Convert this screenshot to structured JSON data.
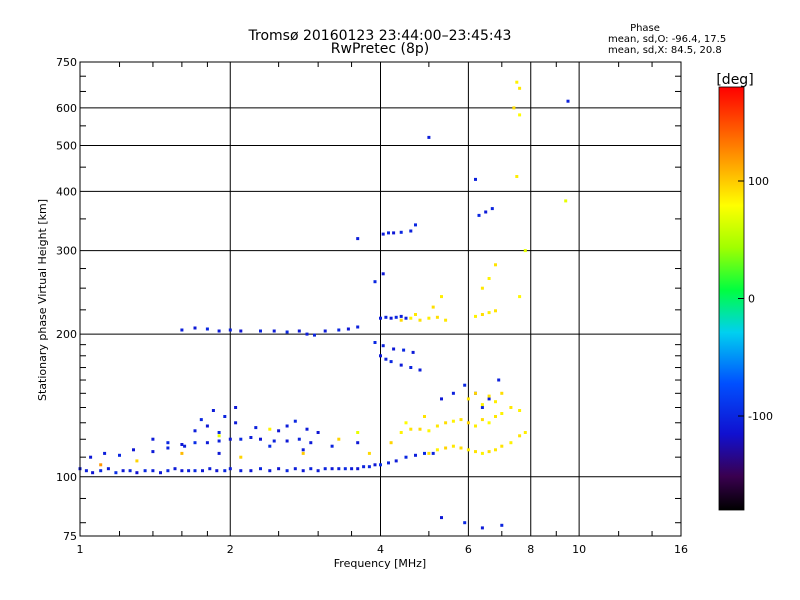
{
  "chart_data": {
    "type": "scatter",
    "title": "Tromsø 20160123 23:44:00–23:45:43",
    "subtitle": "RwPretec (8p)",
    "phase_title": "Phase",
    "phase_stats": [
      "mean, sd,O: -96.4, 17.5",
      "mean, sd,X:  84.5, 20.8"
    ],
    "xlabel": "Frequency [MHz]",
    "ylabel": "Stationary phase Virtual Height [km]",
    "x_scale": "log2",
    "y_scale": "log",
    "xlim": [
      1,
      16
    ],
    "ylim": [
      75,
      750
    ],
    "x_ticks": [
      1,
      2,
      4,
      6,
      8,
      10,
      16
    ],
    "y_ticks": [
      75,
      100,
      200,
      300,
      400,
      500,
      600,
      750
    ],
    "x_grid": [
      2,
      4,
      6,
      8,
      10
    ],
    "y_grid": [
      100,
      200,
      300,
      400,
      500,
      600
    ],
    "colorbar": {
      "label": "[deg]",
      "ticks": [
        -100,
        0,
        100
      ],
      "range": [
        -180,
        180
      ]
    },
    "series": [
      {
        "mode": "O",
        "points": [
          [
            1.0,
            104,
            -110
          ],
          [
            1.03,
            103,
            -105
          ],
          [
            1.06,
            102,
            -112
          ],
          [
            1.1,
            103,
            -100
          ],
          [
            1.14,
            104,
            -108
          ],
          [
            1.18,
            102,
            -95
          ],
          [
            1.22,
            103,
            -110
          ],
          [
            1.26,
            103,
            -102
          ],
          [
            1.3,
            102,
            -115
          ],
          [
            1.35,
            103,
            -98
          ],
          [
            1.4,
            103,
            -105
          ],
          [
            1.45,
            102,
            -110
          ],
          [
            1.5,
            103,
            -100
          ],
          [
            1.55,
            104,
            -108
          ],
          [
            1.6,
            103,
            -112
          ],
          [
            1.65,
            103,
            -104
          ],
          [
            1.7,
            103,
            -98
          ],
          [
            1.76,
            103,
            -110
          ],
          [
            1.82,
            104,
            -106
          ],
          [
            1.88,
            103,
            -112
          ],
          [
            1.95,
            103,
            -100
          ],
          [
            2.0,
            104,
            -108
          ],
          [
            2.1,
            103,
            -104
          ],
          [
            2.2,
            103,
            -110
          ],
          [
            2.3,
            104,
            -102
          ],
          [
            2.4,
            103,
            -108
          ],
          [
            2.5,
            104,
            -112
          ],
          [
            2.6,
            103,
            -100
          ],
          [
            2.7,
            104,
            -106
          ],
          [
            2.8,
            103,
            -110
          ],
          [
            2.9,
            104,
            -104
          ],
          [
            3.0,
            103,
            -108
          ],
          [
            3.1,
            104,
            -102
          ],
          [
            3.2,
            104,
            -110
          ],
          [
            3.3,
            104,
            -106
          ],
          [
            3.4,
            104,
            -98
          ],
          [
            3.5,
            104,
            -108
          ],
          [
            3.6,
            104,
            -112
          ],
          [
            3.7,
            105,
            -104
          ],
          [
            3.8,
            105,
            -100
          ],
          [
            3.9,
            106,
            -110
          ],
          [
            4.0,
            106,
            -95
          ],
          [
            4.15,
            107,
            -102
          ],
          [
            4.3,
            108,
            -108
          ],
          [
            4.5,
            110,
            -100
          ],
          [
            4.7,
            111,
            -105
          ],
          [
            4.9,
            112,
            -98
          ],
          [
            5.1,
            112,
            -102
          ],
          [
            1.05,
            110,
            -110
          ],
          [
            1.12,
            112,
            -105
          ],
          [
            1.2,
            111,
            -100
          ],
          [
            1.28,
            114,
            -112
          ],
          [
            1.4,
            113,
            -108
          ],
          [
            1.5,
            115,
            -102
          ],
          [
            1.6,
            117,
            -110
          ],
          [
            1.7,
            118,
            -95
          ],
          [
            1.8,
            118,
            -108
          ],
          [
            1.9,
            119,
            -104
          ],
          [
            2.0,
            120,
            -110
          ],
          [
            2.1,
            120,
            -100
          ],
          [
            2.2,
            121,
            -106
          ],
          [
            2.3,
            120,
            -112
          ],
          [
            2.45,
            119,
            -104
          ],
          [
            2.6,
            119,
            -110
          ],
          [
            2.75,
            120,
            -102
          ],
          [
            2.9,
            118,
            -108
          ],
          [
            1.7,
            125,
            -105
          ],
          [
            1.8,
            128,
            -110
          ],
          [
            1.9,
            124,
            -100
          ],
          [
            2.05,
            130,
            -108
          ],
          [
            2.25,
            127,
            -104
          ],
          [
            2.5,
            125,
            -112
          ],
          [
            1.75,
            132,
            -100
          ],
          [
            1.85,
            138,
            -108
          ],
          [
            1.95,
            134,
            -102
          ],
          [
            2.05,
            140,
            -110
          ],
          [
            2.6,
            128,
            -106
          ],
          [
            2.7,
            131,
            -100
          ],
          [
            2.85,
            126,
            -108
          ],
          [
            3.0,
            124,
            -112
          ],
          [
            1.62,
            116,
            -104
          ],
          [
            1.5,
            118,
            -100
          ],
          [
            1.4,
            120,
            -108
          ],
          [
            1.9,
            112,
            -110
          ],
          [
            2.4,
            116,
            -96
          ],
          [
            2.8,
            114,
            -108
          ],
          [
            3.2,
            116,
            -102
          ],
          [
            3.6,
            118,
            -110
          ],
          [
            1.6,
            204,
            -105
          ],
          [
            1.7,
            206,
            -110
          ],
          [
            1.8,
            205,
            -100
          ],
          [
            1.9,
            203,
            -108
          ],
          [
            2.0,
            204,
            -104
          ],
          [
            2.1,
            203,
            -112
          ],
          [
            2.3,
            203,
            -102
          ],
          [
            2.45,
            203,
            -108
          ],
          [
            2.6,
            202,
            -100
          ],
          [
            2.75,
            203,
            -110
          ],
          [
            2.85,
            200,
            -106
          ],
          [
            2.95,
            199,
            -102
          ],
          [
            3.1,
            203,
            -108
          ],
          [
            3.3,
            204,
            -100
          ],
          [
            3.45,
            205,
            -110
          ],
          [
            3.6,
            207,
            -104
          ],
          [
            4.0,
            216,
            -108
          ],
          [
            4.1,
            217,
            -102
          ],
          [
            4.2,
            216,
            -110
          ],
          [
            4.3,
            217,
            -100
          ],
          [
            4.4,
            218,
            -106
          ],
          [
            4.5,
            216,
            -104
          ],
          [
            4.0,
            180,
            -110
          ],
          [
            4.1,
            177,
            -104
          ],
          [
            4.2,
            175,
            -100
          ],
          [
            4.4,
            172,
            -108
          ],
          [
            4.6,
            170,
            -102
          ],
          [
            4.8,
            168,
            -106
          ],
          [
            3.9,
            192,
            -98
          ],
          [
            4.05,
            189,
            -104
          ],
          [
            4.25,
            186,
            -110
          ],
          [
            4.45,
            185,
            -100
          ],
          [
            4.65,
            183,
            -108
          ],
          [
            4.05,
            325,
            -108
          ],
          [
            4.15,
            327,
            -102
          ],
          [
            4.25,
            327,
            -110
          ],
          [
            4.4,
            328,
            -100
          ],
          [
            4.6,
            330,
            -104
          ],
          [
            4.05,
            268,
            -110
          ],
          [
            3.9,
            258,
            -100
          ],
          [
            5.3,
            146,
            -110
          ],
          [
            5.6,
            150,
            -104
          ],
          [
            5.9,
            156,
            -100
          ],
          [
            6.2,
            150,
            -108
          ],
          [
            6.4,
            140,
            -102
          ],
          [
            6.6,
            146,
            -110
          ],
          [
            6.9,
            160,
            -104
          ],
          [
            6.3,
            356,
            -100
          ],
          [
            6.5,
            362,
            -108
          ],
          [
            6.7,
            368,
            -102
          ],
          [
            6.2,
            424,
            -104
          ],
          [
            9.5,
            620,
            -104
          ],
          [
            5.0,
            520,
            -106
          ],
          [
            5.3,
            82,
            -110
          ],
          [
            5.9,
            80,
            -100
          ],
          [
            6.4,
            78,
            -108
          ],
          [
            7.0,
            79,
            -102
          ],
          [
            3.6,
            318,
            -105
          ],
          [
            4.7,
            340,
            -100
          ]
        ]
      },
      {
        "mode": "X",
        "points": [
          [
            1.1,
            106,
            120
          ],
          [
            1.3,
            108,
            96
          ],
          [
            1.6,
            112,
            106
          ],
          [
            1.9,
            122,
            70
          ],
          [
            2.1,
            110,
            96
          ],
          [
            2.4,
            126,
            84
          ],
          [
            2.8,
            112,
            100
          ],
          [
            3.3,
            120,
            96
          ],
          [
            3.8,
            112,
            94
          ],
          [
            4.2,
            118,
            96
          ],
          [
            4.4,
            124,
            84
          ],
          [
            4.6,
            126,
            90
          ],
          [
            4.8,
            126,
            94
          ],
          [
            5.0,
            125,
            82
          ],
          [
            5.2,
            128,
            88
          ],
          [
            5.4,
            130,
            92
          ],
          [
            5.6,
            131,
            84
          ],
          [
            5.8,
            132,
            90
          ],
          [
            6.0,
            130,
            96
          ],
          [
            6.2,
            128,
            86
          ],
          [
            6.4,
            132,
            92
          ],
          [
            6.6,
            130,
            80
          ],
          [
            6.8,
            134,
            88
          ],
          [
            7.0,
            136,
            84
          ],
          [
            5.0,
            112,
            90
          ],
          [
            5.2,
            114,
            84
          ],
          [
            5.4,
            115,
            96
          ],
          [
            5.6,
            116,
            88
          ],
          [
            5.8,
            115,
            92
          ],
          [
            6.0,
            114,
            86
          ],
          [
            6.2,
            113,
            90
          ],
          [
            6.4,
            112,
            84
          ],
          [
            6.6,
            113,
            92
          ],
          [
            6.8,
            114,
            88
          ],
          [
            7.0,
            116,
            90
          ],
          [
            7.3,
            118,
            84
          ],
          [
            7.6,
            122,
            90
          ],
          [
            7.8,
            124,
            86
          ],
          [
            6.0,
            146,
            88
          ],
          [
            6.2,
            150,
            96
          ],
          [
            6.4,
            142,
            84
          ],
          [
            6.6,
            148,
            90
          ],
          [
            6.8,
            144,
            86
          ],
          [
            7.0,
            150,
            92
          ],
          [
            7.3,
            140,
            88
          ],
          [
            7.6,
            138,
            84
          ],
          [
            4.4,
            214,
            94
          ],
          [
            4.6,
            216,
            84
          ],
          [
            4.8,
            214,
            90
          ],
          [
            5.0,
            216,
            86
          ],
          [
            5.2,
            217,
            92
          ],
          [
            5.4,
            214,
            88
          ],
          [
            6.2,
            218,
            84
          ],
          [
            6.4,
            220,
            92
          ],
          [
            6.6,
            222,
            86
          ],
          [
            6.8,
            224,
            90
          ],
          [
            6.4,
            250,
            88
          ],
          [
            6.6,
            262,
            84
          ],
          [
            6.8,
            280,
            90
          ],
          [
            7.5,
            680,
            84
          ],
          [
            7.6,
            660,
            88
          ],
          [
            7.4,
            600,
            92
          ],
          [
            7.6,
            580,
            80
          ],
          [
            7.5,
            430,
            86
          ],
          [
            7.8,
            300,
            70
          ],
          [
            7.6,
            240,
            82
          ],
          [
            9.4,
            382,
            70
          ],
          [
            4.7,
            220,
            88
          ],
          [
            5.1,
            228,
            92
          ],
          [
            4.5,
            130,
            80
          ],
          [
            4.9,
            134,
            90
          ],
          [
            3.6,
            124,
            70
          ],
          [
            5.3,
            240,
            86
          ]
        ]
      }
    ]
  }
}
